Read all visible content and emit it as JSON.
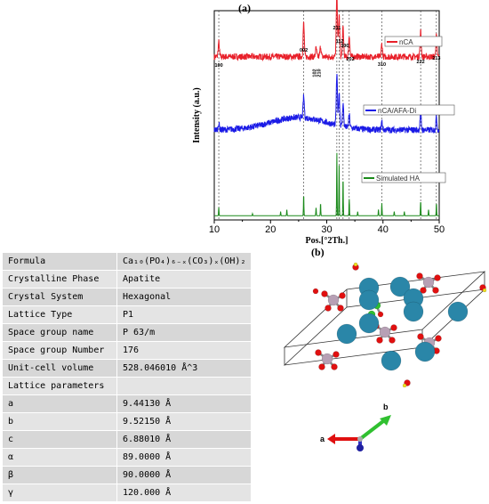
{
  "panel_a_label": "(a)",
  "panel_b_label": "(b)",
  "chart_data": {
    "type": "line",
    "xlabel": "Pos.[°2Th.]",
    "ylabel": "Intensity (a.u.)",
    "xlim": [
      10,
      50
    ],
    "xticks": [
      10,
      20,
      30,
      40,
      50
    ],
    "series": [
      {
        "name": "nCA",
        "color": "#e8202a",
        "offset": 0.78,
        "peaks": [
          [
            10.8,
            0.07
          ],
          [
            25.9,
            0.16
          ],
          [
            28.1,
            0.04
          ],
          [
            28.9,
            0.05
          ],
          [
            31.8,
            0.3
          ],
          [
            32.2,
            0.2
          ],
          [
            32.9,
            0.14
          ],
          [
            34.0,
            0.1
          ],
          [
            39.8,
            0.06
          ],
          [
            46.7,
            0.12
          ],
          [
            49.5,
            0.1
          ]
        ]
      },
      {
        "name": "nCA/AFA-Di",
        "color": "#1a1ae6",
        "offset": 0.43,
        "peaks": [
          [
            10.8,
            0.03
          ],
          [
            25.9,
            0.1
          ],
          [
            31.8,
            0.24
          ],
          [
            32.2,
            0.16
          ],
          [
            32.9,
            0.11
          ],
          [
            34.0,
            0.06
          ],
          [
            39.8,
            0.04
          ],
          [
            46.7,
            0.08
          ],
          [
            49.5,
            0.06
          ]
        ],
        "hump": 0.06
      },
      {
        "name": "Simulated HA",
        "color": "#1a8a1a",
        "offset": 0.02,
        "peaks": [
          [
            10.8,
            0.04
          ],
          [
            16.8,
            0.01
          ],
          [
            21.8,
            0.02
          ],
          [
            22.9,
            0.03
          ],
          [
            25.9,
            0.1
          ],
          [
            28.1,
            0.04
          ],
          [
            28.9,
            0.06
          ],
          [
            31.8,
            0.3
          ],
          [
            32.2,
            0.24
          ],
          [
            32.9,
            0.18
          ],
          [
            34.0,
            0.08
          ],
          [
            35.5,
            0.02
          ],
          [
            39.2,
            0.03
          ],
          [
            39.8,
            0.06
          ],
          [
            42.0,
            0.02
          ],
          [
            43.8,
            0.02
          ],
          [
            46.7,
            0.07
          ],
          [
            48.1,
            0.03
          ],
          [
            49.5,
            0.06
          ]
        ]
      }
    ],
    "reference_lines": [
      10.8,
      25.9,
      31.8,
      32.2,
      32.9,
      34.0,
      39.8,
      46.7,
      49.5
    ],
    "annotations": [
      {
        "text": "100",
        "x": 10.8
      },
      {
        "text": "002",
        "x": 25.9
      },
      {
        "text": "102",
        "x": 28.1
      },
      {
        "text": "210",
        "x": 28.9
      },
      {
        "text": "211",
        "x": 31.8
      },
      {
        "text": "112",
        "x": 32.3
      },
      {
        "text": "300",
        "x": 33.2
      },
      {
        "text": "202",
        "x": 34.2
      },
      {
        "text": "310",
        "x": 39.8
      },
      {
        "text": "222",
        "x": 46.7
      },
      {
        "text": "213",
        "x": 49.5
      }
    ]
  },
  "table": {
    "rows": [
      {
        "key": "Formula",
        "value": "Ca₁₀(PO₄)₆₋ₓ(CO₃)ₓ(OH)₂"
      },
      {
        "key": "Crystalline Phase",
        "value": "Apatite"
      },
      {
        "key": "Crystal System",
        "value": "Hexagonal"
      },
      {
        "key": "Lattice Type",
        "value": "P1"
      },
      {
        "key": "Space group name",
        "value": "P 63/m"
      },
      {
        "key": "Space group Number",
        "value": "176"
      },
      {
        "key": "Unit-cell volume",
        "value": "528.046010 Å^3"
      },
      {
        "key": "Lattice parameters",
        "value": ""
      },
      {
        "key": "a",
        "value": "9.44130 Å"
      },
      {
        "key": "b",
        "value": "9.52150 Å"
      },
      {
        "key": "c",
        "value": "6.88010 Å"
      },
      {
        "key": "α",
        "value": "89.0000 Å"
      },
      {
        "key": "β",
        "value": "90.0000 Å"
      },
      {
        "key": "γ",
        "value": "120.000 Å"
      }
    ]
  },
  "axis_labels": {
    "a": "a",
    "b": "b"
  },
  "colors": {
    "ca": "#2a86a8",
    "p": "#b7a0b5",
    "o": "#e01010",
    "h": "#f0e020",
    "c": "#30c030"
  }
}
